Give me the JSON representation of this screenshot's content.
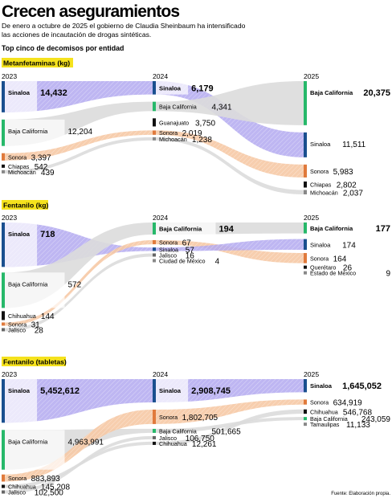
{
  "header": {
    "title": "Crecen aseguramientos",
    "subtitle_line1": "De enero a octubre de 2025 el gobierno de Claudia Sheinbaum ha intensificado",
    "subtitle_line2": "las acciones de incautación de drogas sintéticas.",
    "section_heading": "Top cinco de decomisos por entidad"
  },
  "source_note": "Fuente: Elaboración propia.",
  "colors": {
    "Sinaloa": "#1a4f8f",
    "Baja California": "#27b86a",
    "Sonora": "#e07a3c",
    "Chiapas": "#111111",
    "Michoacán": "#888888",
    "Guanajuato": "#111111",
    "Chihuahua": "#111111",
    "Jalisco": "#666666",
    "Ciudad de México": "#888888",
    "Querétaro": "#111111",
    "Estado de México": "#888888",
    "Tamaulipas": "#888888",
    "sinaloa_flow": "#b3a9f0",
    "sonora_flow": "#f6c9a5",
    "neutral_flow": "#dcdcdc",
    "badge_highlight": "#f5e21d"
  },
  "chart_data": [
    {
      "type": "sankey",
      "title": "Metanfetaminas (kg)",
      "years": [
        "2023",
        "2024",
        "2025"
      ],
      "columns": [
        [
          {
            "name": "Sinaloa",
            "value": 14432,
            "label": "14,432"
          },
          {
            "name": "Baja California",
            "value": 12204,
            "label": "12,204"
          },
          {
            "name": "Sonora",
            "value": 3397,
            "label": "3,397"
          },
          {
            "name": "Chiapas",
            "value": 542,
            "label": "542"
          },
          {
            "name": "Michoacán",
            "value": 439,
            "label": "439"
          }
        ],
        [
          {
            "name": "Sinaloa",
            "value": 6179,
            "label": "6,179"
          },
          {
            "name": "Baja California",
            "value": 4341,
            "label": "4,341"
          },
          {
            "name": "Guanajuato",
            "value": 3750,
            "label": "3,750"
          },
          {
            "name": "Sonora",
            "value": 2019,
            "label": "2,019"
          },
          {
            "name": "Michoacán",
            "value": 1238,
            "label": "1,238"
          }
        ],
        [
          {
            "name": "Baja California",
            "value": 20375,
            "label": "20,375"
          },
          {
            "name": "Sinaloa",
            "value": 11511,
            "label": "11,511"
          },
          {
            "name": "Sonora",
            "value": 5983,
            "label": "5,983"
          },
          {
            "name": "Chiapas",
            "value": 2802,
            "label": "2,802"
          },
          {
            "name": "Michoacán",
            "value": 2037,
            "label": "2,037"
          }
        ]
      ]
    },
    {
      "type": "sankey",
      "title": "Fentanilo (kg)",
      "years": [
        "2023",
        "2024",
        "2025"
      ],
      "columns": [
        [
          {
            "name": "Sinaloa",
            "value": 718,
            "label": "718"
          },
          {
            "name": "Baja California",
            "value": 572,
            "label": "572"
          },
          {
            "name": "Chihuahua",
            "value": 144,
            "label": "144"
          },
          {
            "name": "Sonora",
            "value": 31,
            "label": "31"
          },
          {
            "name": "Jalisco",
            "value": 28,
            "label": "28"
          }
        ],
        [
          {
            "name": "Baja California",
            "value": 194,
            "label": "194"
          },
          {
            "name": "Sonora",
            "value": 67,
            "label": "67"
          },
          {
            "name": "Sinaloa",
            "value": 57,
            "label": "57"
          },
          {
            "name": "Jalisco",
            "value": 16,
            "label": "16"
          },
          {
            "name": "Ciudad de México",
            "value": 4,
            "label": "4"
          }
        ],
        [
          {
            "name": "Baja California",
            "value": 177,
            "label": "177"
          },
          {
            "name": "Sinaloa",
            "value": 174,
            "label": "174"
          },
          {
            "name": "Sonora",
            "value": 164,
            "label": "164"
          },
          {
            "name": "Querétaro",
            "value": 26,
            "label": "26"
          },
          {
            "name": "Estado de México",
            "value": 9,
            "label": "9"
          }
        ]
      ]
    },
    {
      "type": "sankey",
      "title": "Fentanilo (tabletas)",
      "years": [
        "2023",
        "2024",
        "2025"
      ],
      "columns": [
        [
          {
            "name": "Sinaloa",
            "value": 5452612,
            "label": "5,452,612"
          },
          {
            "name": "Baja California",
            "value": 4963991,
            "label": "4,963,991"
          },
          {
            "name": "Sonora",
            "value": 883893,
            "label": "883,893"
          },
          {
            "name": "Chihuahua",
            "value": 145208,
            "label": "145,208"
          },
          {
            "name": "Jalisco",
            "value": 102500,
            "label": "102,500"
          }
        ],
        [
          {
            "name": "Sinaloa",
            "value": 2908745,
            "label": "2,908,745"
          },
          {
            "name": "Sonora",
            "value": 1802705,
            "label": "1,802,705"
          },
          {
            "name": "Baja California",
            "value": 501665,
            "label": "501,665"
          },
          {
            "name": "Jalisco",
            "value": 106750,
            "label": "106,750"
          },
          {
            "name": "Chihuahua",
            "value": 12261,
            "label": "12,261"
          }
        ],
        [
          {
            "name": "Sinaloa",
            "value": 1645052,
            "label": "1,645,052"
          },
          {
            "name": "Sonora",
            "value": 634919,
            "label": "634,919"
          },
          {
            "name": "Chihuahua",
            "value": 546768,
            "label": "546,768"
          },
          {
            "name": "Baja California",
            "value": 243059,
            "label": "243,059"
          },
          {
            "name": "Tamaulipas",
            "value": 11133,
            "label": "11,133"
          }
        ]
      ]
    }
  ]
}
